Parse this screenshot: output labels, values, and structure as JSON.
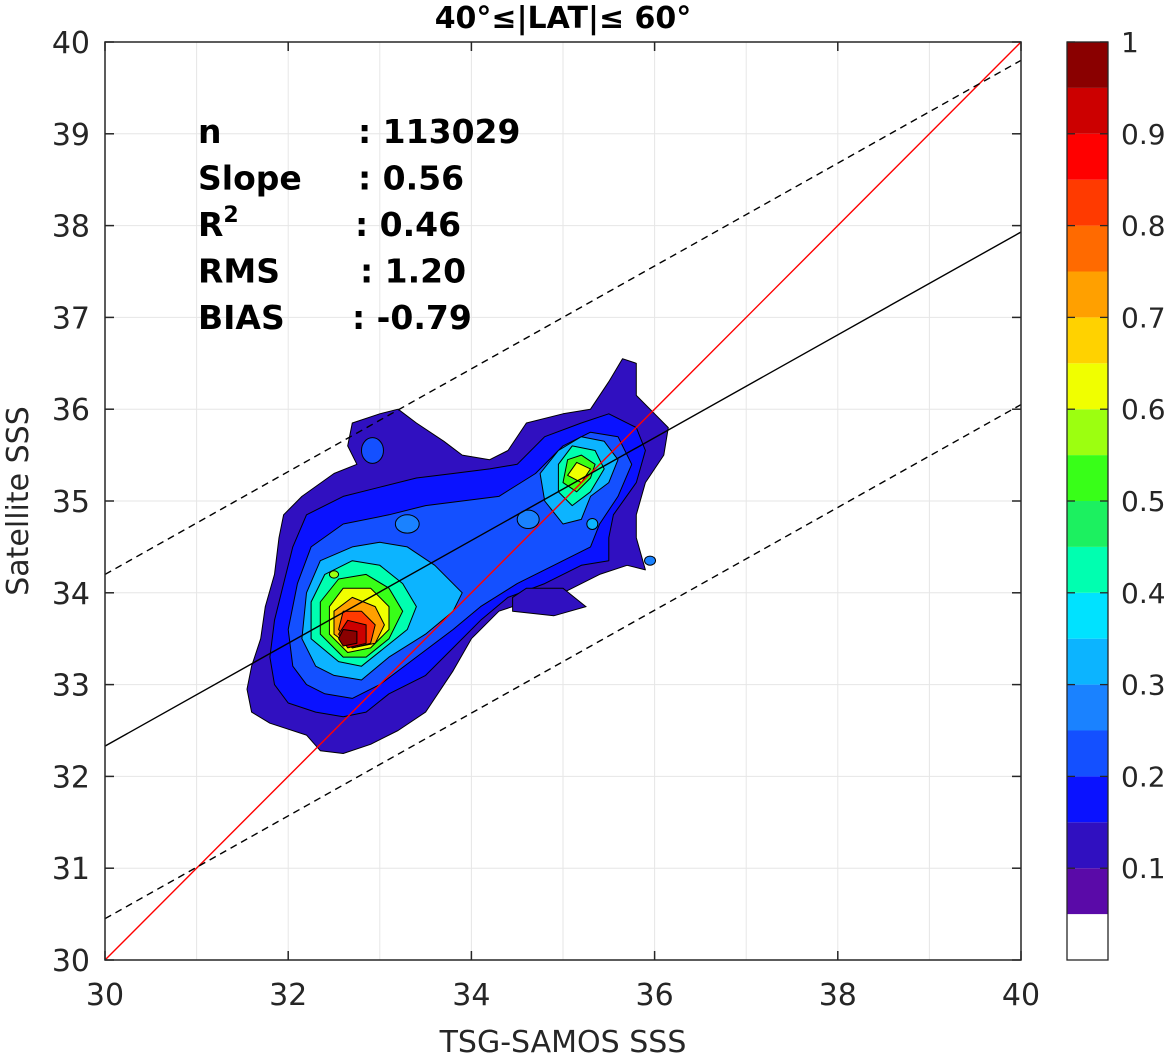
{
  "chart_data": {
    "type": "contour",
    "title": "40°≤|LAT|≤ 60°",
    "xlabel": "TSG-SAMOS SSS",
    "ylabel": "Satellite SSS",
    "xlim": [
      30,
      40
    ],
    "ylim": [
      30,
      40
    ],
    "xticks": [
      "30",
      "32",
      "34",
      "36",
      "38",
      "40"
    ],
    "yticks": [
      "30",
      "31",
      "32",
      "33",
      "34",
      "35",
      "36",
      "37",
      "38",
      "39",
      "40"
    ],
    "grid": true,
    "stats": [
      {
        "label": "n",
        "value": ": 113029"
      },
      {
        "label": "Slope",
        "value": ": 0.56"
      },
      {
        "label": "R",
        "sup": "2",
        "value": ": 0.46"
      },
      {
        "label": "RMS",
        "value": ": 1.20"
      },
      {
        "label": "BIAS",
        "value": ": -0.79"
      }
    ],
    "lines": [
      {
        "role": "one-to-one",
        "color": "#ff0000",
        "style": "solid",
        "x": [
          30,
          40
        ],
        "y": [
          30,
          40
        ]
      },
      {
        "role": "regression",
        "color": "#000000",
        "style": "solid",
        "x": [
          30,
          40
        ],
        "y": [
          32.33,
          37.93
        ]
      },
      {
        "role": "upper-bound",
        "color": "#000000",
        "style": "dashed",
        "x": [
          30,
          40
        ],
        "y": [
          34.2,
          39.8
        ]
      },
      {
        "role": "lower-bound",
        "color": "#000000",
        "style": "dashed",
        "x": [
          30,
          40
        ],
        "y": [
          30.45,
          36.05
        ]
      }
    ],
    "colorbar": {
      "ticks": [
        "0.1",
        "0.2",
        "0.3",
        "0.4",
        "0.5",
        "0.6",
        "0.7",
        "0.8",
        "0.9",
        "1"
      ],
      "levels": [
        0,
        0.05,
        0.1,
        0.15,
        0.2,
        0.25,
        0.3,
        0.35,
        0.4,
        0.45,
        0.5,
        0.55,
        0.6,
        0.65,
        0.7,
        0.75,
        0.8,
        0.85,
        0.9,
        0.95,
        1.0
      ],
      "colors": [
        "#ffffff",
        "#5a0aa8",
        "#3010c0",
        "#0a12ff",
        "#1450ff",
        "#1a82ff",
        "#0cb4ff",
        "#00e2ff",
        "#00ffb0",
        "#1cf060",
        "#38ff18",
        "#9cff10",
        "#f0ff00",
        "#ffd200",
        "#ffa000",
        "#ff6a00",
        "#ff3a00",
        "#ff0000",
        "#cc0000",
        "#8a0000"
      ]
    },
    "contours": [
      {
        "level": 0.1,
        "polys": [
          [
            [
              32.2,
              32.45
            ],
            [
              32.35,
              32.28
            ],
            [
              32.6,
              32.25
            ],
            [
              32.9,
              32.35
            ],
            [
              33.2,
              32.5
            ],
            [
              33.5,
              32.7
            ],
            [
              33.8,
              33.15
            ],
            [
              34.0,
              33.5
            ],
            [
              34.3,
              33.8
            ],
            [
              34.6,
              33.9
            ],
            [
              35.0,
              34.0
            ],
            [
              35.4,
              34.2
            ],
            [
              35.7,
              34.3
            ],
            [
              35.9,
              34.25
            ],
            [
              35.8,
              34.6
            ],
            [
              35.8,
              34.85
            ],
            [
              35.9,
              35.2
            ],
            [
              36.1,
              35.5
            ],
            [
              36.15,
              35.8
            ],
            [
              36.0,
              35.95
            ],
            [
              35.8,
              36.15
            ],
            [
              35.8,
              36.5
            ],
            [
              35.65,
              36.55
            ],
            [
              35.5,
              36.3
            ],
            [
              35.3,
              36.0
            ],
            [
              35.0,
              35.95
            ],
            [
              34.6,
              35.85
            ],
            [
              34.4,
              35.55
            ],
            [
              34.2,
              35.45
            ],
            [
              33.9,
              35.5
            ],
            [
              33.7,
              35.65
            ],
            [
              33.4,
              35.85
            ],
            [
              33.2,
              36.0
            ],
            [
              33.0,
              35.95
            ],
            [
              32.7,
              35.85
            ],
            [
              32.65,
              35.6
            ],
            [
              32.75,
              35.4
            ],
            [
              32.5,
              35.3
            ],
            [
              32.15,
              35.05
            ],
            [
              31.95,
              34.85
            ],
            [
              31.9,
              34.6
            ],
            [
              31.85,
              34.2
            ],
            [
              31.75,
              33.85
            ],
            [
              31.7,
              33.5
            ],
            [
              31.6,
              33.2
            ],
            [
              31.55,
              32.95
            ],
            [
              31.6,
              32.7
            ],
            [
              31.8,
              32.58
            ]
          ]
        ]
      },
      {
        "level": 0.15,
        "polys": [
          [
            [
              32.3,
              32.7
            ],
            [
              32.6,
              32.65
            ],
            [
              32.85,
              32.7
            ],
            [
              33.1,
              32.9
            ],
            [
              33.5,
              33.1
            ],
            [
              33.8,
              33.4
            ],
            [
              34.1,
              33.7
            ],
            [
              34.4,
              33.95
            ],
            [
              34.8,
              34.1
            ],
            [
              35.2,
              34.3
            ],
            [
              35.5,
              34.35
            ],
            [
              35.5,
              34.6
            ],
            [
              35.55,
              34.85
            ],
            [
              35.8,
              35.2
            ],
            [
              35.9,
              35.55
            ],
            [
              35.8,
              35.8
            ],
            [
              35.5,
              35.95
            ],
            [
              35.2,
              35.85
            ],
            [
              34.8,
              35.7
            ],
            [
              34.5,
              35.4
            ],
            [
              34.2,
              35.35
            ],
            [
              33.8,
              35.3
            ],
            [
              33.4,
              35.25
            ],
            [
              33.0,
              35.15
            ],
            [
              32.6,
              35.05
            ],
            [
              32.2,
              34.85
            ],
            [
              32.05,
              34.5
            ],
            [
              31.95,
              34.1
            ],
            [
              31.85,
              33.7
            ],
            [
              31.8,
              33.3
            ],
            [
              31.85,
              33.0
            ],
            [
              32.0,
              32.8
            ]
          ]
        ]
      },
      {
        "level": 0.2,
        "polys": [
          [
            [
              32.4,
              32.9
            ],
            [
              32.7,
              32.85
            ],
            [
              33.0,
              33.0
            ],
            [
              33.4,
              33.3
            ],
            [
              33.8,
              33.6
            ],
            [
              34.1,
              33.85
            ],
            [
              34.5,
              34.1
            ],
            [
              34.9,
              34.3
            ],
            [
              35.3,
              34.5
            ],
            [
              35.4,
              34.75
            ],
            [
              35.6,
              35.05
            ],
            [
              35.75,
              35.4
            ],
            [
              35.6,
              35.7
            ],
            [
              35.3,
              35.75
            ],
            [
              35.0,
              35.6
            ],
            [
              34.7,
              35.3
            ],
            [
              34.3,
              35.05
            ],
            [
              33.9,
              35.0
            ],
            [
              33.5,
              34.95
            ],
            [
              33.1,
              34.85
            ],
            [
              32.6,
              34.75
            ],
            [
              32.25,
              34.5
            ],
            [
              32.1,
              34.1
            ],
            [
              32.0,
              33.6
            ],
            [
              32.05,
              33.2
            ],
            [
              32.2,
              33.0
            ]
          ]
        ]
      },
      {
        "level": 0.3,
        "polys": [
          [
            [
              32.5,
              33.1
            ],
            [
              32.8,
              33.05
            ],
            [
              33.1,
              33.3
            ],
            [
              33.5,
              33.55
            ],
            [
              33.8,
              33.8
            ],
            [
              33.9,
              34.0
            ],
            [
              33.6,
              34.3
            ],
            [
              33.3,
              34.5
            ],
            [
              33.0,
              34.55
            ],
            [
              32.7,
              34.5
            ],
            [
              32.35,
              34.35
            ],
            [
              32.2,
              34.0
            ],
            [
              32.15,
              33.5
            ],
            [
              32.3,
              33.2
            ]
          ],
          [
            [
              34.8,
              35.0
            ],
            [
              35.0,
              34.75
            ],
            [
              35.2,
              34.8
            ],
            [
              35.3,
              35.05
            ],
            [
              35.5,
              35.2
            ],
            [
              35.6,
              35.45
            ],
            [
              35.45,
              35.65
            ],
            [
              35.2,
              35.7
            ],
            [
              34.95,
              35.55
            ],
            [
              34.75,
              35.3
            ]
          ]
        ]
      },
      {
        "level": 0.4,
        "polys": [
          [
            [
              32.55,
              33.25
            ],
            [
              32.8,
              33.2
            ],
            [
              33.05,
              33.4
            ],
            [
              33.3,
              33.6
            ],
            [
              33.4,
              33.85
            ],
            [
              33.25,
              34.1
            ],
            [
              33.0,
              34.3
            ],
            [
              32.7,
              34.35
            ],
            [
              32.4,
              34.2
            ],
            [
              32.25,
              33.9
            ],
            [
              32.25,
              33.5
            ]
          ],
          [
            [
              34.95,
              35.1
            ],
            [
              35.1,
              34.95
            ],
            [
              35.3,
              35.1
            ],
            [
              35.45,
              35.35
            ],
            [
              35.35,
              35.55
            ],
            [
              35.1,
              35.6
            ],
            [
              34.95,
              35.4
            ]
          ]
        ]
      },
      {
        "level": 0.5,
        "polys": [
          [
            [
              32.6,
              33.3
            ],
            [
              32.85,
              33.3
            ],
            [
              33.1,
              33.5
            ],
            [
              33.25,
              33.8
            ],
            [
              33.1,
              34.05
            ],
            [
              32.85,
              34.2
            ],
            [
              32.55,
              34.15
            ],
            [
              32.35,
              33.9
            ],
            [
              32.35,
              33.55
            ]
          ],
          [
            [
              35.0,
              35.2
            ],
            [
              35.15,
              35.1
            ],
            [
              35.3,
              35.25
            ],
            [
              35.35,
              35.4
            ],
            [
              35.2,
              35.5
            ],
            [
              35.05,
              35.45
            ]
          ]
        ]
      },
      {
        "level": 0.6,
        "polys": [
          [
            [
              32.65,
              33.35
            ],
            [
              32.9,
              33.4
            ],
            [
              33.1,
              33.6
            ],
            [
              33.1,
              33.85
            ],
            [
              32.9,
              34.05
            ],
            [
              32.6,
              34.05
            ],
            [
              32.45,
              33.85
            ],
            [
              32.45,
              33.55
            ]
          ],
          [
            [
              35.05,
              35.28
            ],
            [
              35.2,
              35.2
            ],
            [
              35.3,
              35.35
            ],
            [
              35.15,
              35.42
            ]
          ]
        ]
      },
      {
        "level": 0.7,
        "polys": [
          [
            [
              32.7,
              33.4
            ],
            [
              32.95,
              33.45
            ],
            [
              33.05,
              33.65
            ],
            [
              32.95,
              33.85
            ],
            [
              32.7,
              33.95
            ],
            [
              32.5,
              33.8
            ],
            [
              32.5,
              33.55
            ]
          ]
        ]
      },
      {
        "level": 0.8,
        "polys": [
          [
            [
              32.7,
              33.4
            ],
            [
              32.9,
              33.45
            ],
            [
              32.95,
              33.65
            ],
            [
              32.8,
              33.8
            ],
            [
              32.6,
              33.8
            ],
            [
              32.55,
              33.6
            ]
          ]
        ]
      },
      {
        "level": 0.9,
        "polys": [
          [
            [
              32.65,
              33.4
            ],
            [
              32.85,
              33.45
            ],
            [
              32.85,
              33.65
            ],
            [
              32.65,
              33.7
            ],
            [
              32.55,
              33.55
            ]
          ]
        ]
      },
      {
        "level": 0.95,
        "polys": [
          [
            [
              32.6,
              33.42
            ],
            [
              32.75,
              33.45
            ],
            [
              32.75,
              33.58
            ],
            [
              32.6,
              33.6
            ],
            [
              32.55,
              33.5
            ]
          ]
        ]
      }
    ],
    "holes": [
      [
        [
          34.45,
          33.8
        ],
        [
          34.9,
          33.75
        ],
        [
          35.25,
          33.85
        ],
        [
          35.0,
          34.05
        ],
        [
          34.6,
          34.05
        ],
        [
          34.45,
          33.95
        ]
      ]
    ],
    "islands": [
      {
        "level": 0.2,
        "center": [
          32.92,
          35.55
        ],
        "r": [
          0.12,
          0.14
        ]
      },
      {
        "level": 0.25,
        "center": [
          33.3,
          34.75
        ],
        "r": [
          0.13,
          0.1
        ]
      },
      {
        "level": 0.25,
        "center": [
          34.62,
          34.8
        ],
        "r": [
          0.12,
          0.1
        ]
      },
      {
        "level": 0.3,
        "center": [
          35.32,
          34.75
        ],
        "r": [
          0.06,
          0.06
        ]
      },
      {
        "level": 0.25,
        "center": [
          35.95,
          34.35
        ],
        "r": [
          0.06,
          0.05
        ]
      },
      {
        "level": 0.55,
        "center": [
          32.5,
          34.2
        ],
        "r": [
          0.05,
          0.04
        ]
      }
    ]
  }
}
